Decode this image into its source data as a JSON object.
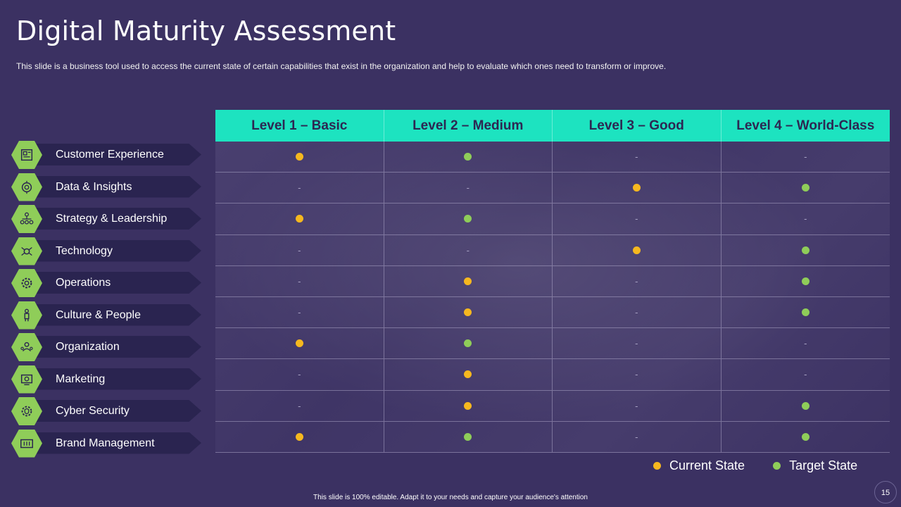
{
  "header": {
    "title": "Digital Maturity  Assessment",
    "subtitle": "This slide is a business tool used to access the current state of certain capabilities that exist in the organization and help to evaluate  which ones need to transform  or improve."
  },
  "colors": {
    "background": "#3b3162",
    "header_accent": "#1de3c0",
    "current_state": "#f6b81f",
    "target_state": "#8fcd59",
    "hex_badge": "#8fcd59"
  },
  "table": {
    "columns": [
      "Level 1 – Basic",
      "Level 2 – Medium",
      "Level 3 – Good",
      "Level 4 – World-Class"
    ],
    "empty_marker": "-",
    "rows": [
      {
        "category": "Customer Experience",
        "icon": "customer-experience-icon",
        "cells": [
          "current",
          "target",
          "-",
          "-"
        ]
      },
      {
        "category": "Data & Insights",
        "icon": "data-insights-icon",
        "cells": [
          "-",
          "-",
          "current",
          "target"
        ]
      },
      {
        "category": "Strategy & Leadership",
        "icon": "strategy-leadership-icon",
        "cells": [
          "current",
          "target",
          "-",
          "-"
        ]
      },
      {
        "category": "Technology",
        "icon": "technology-icon",
        "cells": [
          "-",
          "-",
          "current",
          "target"
        ]
      },
      {
        "category": "Operations",
        "icon": "operations-gear-icon",
        "cells": [
          "-",
          "current",
          "-",
          "target"
        ]
      },
      {
        "category": "Culture  & People",
        "icon": "culture-people-icon",
        "cells": [
          "-",
          "current",
          "-",
          "target"
        ]
      },
      {
        "category": "Organization",
        "icon": "organization-icon",
        "cells": [
          "current",
          "target",
          "-",
          "-"
        ]
      },
      {
        "category": "Marketing",
        "icon": "marketing-icon",
        "cells": [
          "-",
          "current",
          "-",
          "-"
        ]
      },
      {
        "category": "Cyber Security",
        "icon": "cyber-security-icon",
        "cells": [
          "-",
          "current",
          "-",
          "target"
        ]
      },
      {
        "category": "Brand Management",
        "icon": "brand-management-icon",
        "cells": [
          "current",
          "target",
          "-",
          "target"
        ]
      }
    ]
  },
  "legend": {
    "current_label": "Current State",
    "target_label": "Target State"
  },
  "footer": {
    "text": "This slide is 100% editable.  Adapt it to your needs and capture your audience's attention",
    "page_number": "15"
  }
}
